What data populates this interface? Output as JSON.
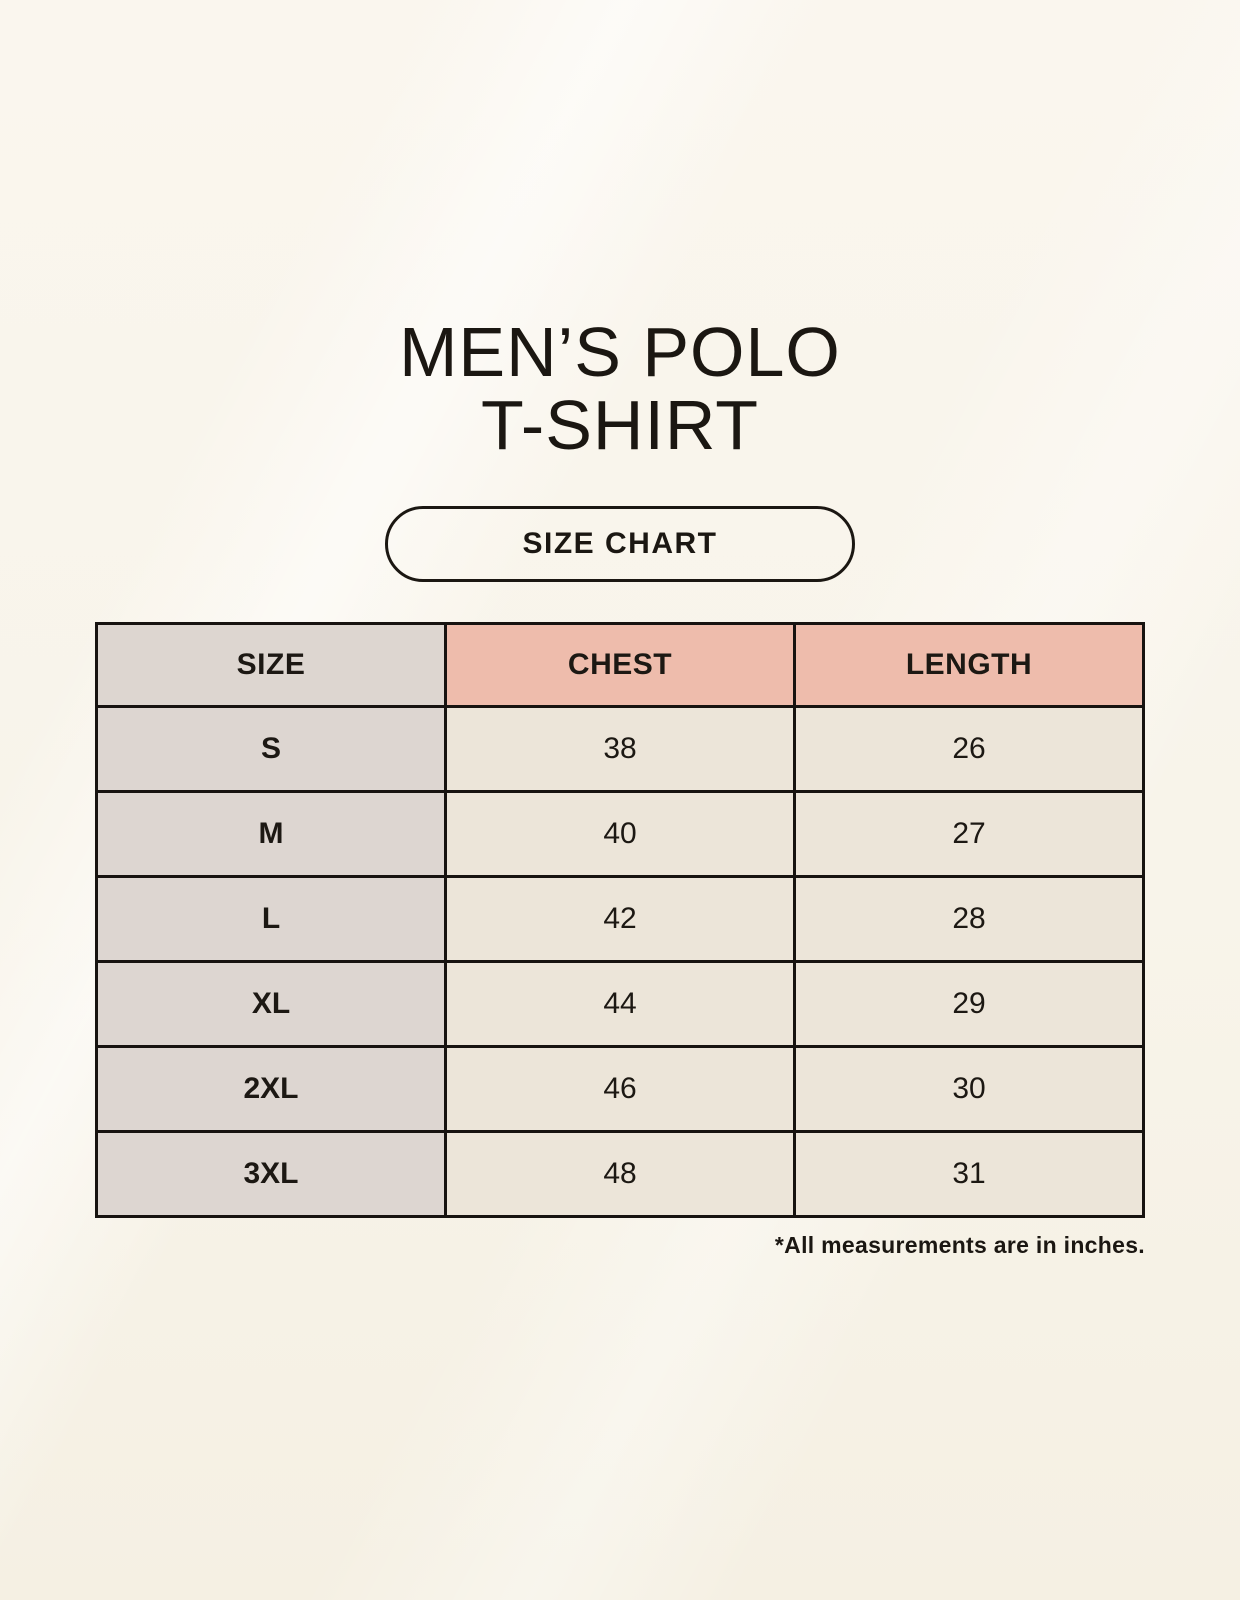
{
  "colors": {
    "background": "#F8F4EA",
    "border_and_text": "#1B1712",
    "size_header_bg": "#DDD6D0",
    "measurement_header_bg": "#EEBCAC",
    "size_column_bg": "#DDD6D1",
    "data_cell_bg": "#ECE5D9"
  },
  "header": {
    "title_line1": "MEN’S POLO",
    "title_line2": "T-SHIRT",
    "badge_label": "SIZE CHART"
  },
  "table": {
    "columns": [
      "SIZE",
      "CHEST",
      "LENGTH"
    ],
    "rows": [
      {
        "size": "S",
        "chest": "38",
        "length": "26"
      },
      {
        "size": "M",
        "chest": "40",
        "length": "27"
      },
      {
        "size": "L",
        "chest": "42",
        "length": "28"
      },
      {
        "size": "XL",
        "chest": "44",
        "length": "29"
      },
      {
        "size": "2XL",
        "chest": "46",
        "length": "30"
      },
      {
        "size": "3XL",
        "chest": "48",
        "length": "31"
      }
    ]
  },
  "footnote": {
    "text": "*All measurements are in inches."
  }
}
